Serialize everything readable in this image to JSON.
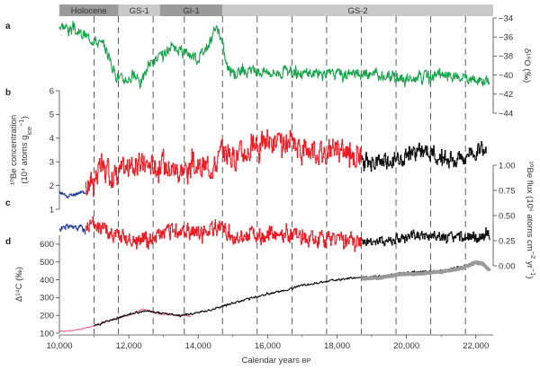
{
  "chart_data": {
    "type": "line",
    "x_axis": {
      "label": "Calendar years",
      "label_suffix": "BP",
      "range": [
        10000,
        22500
      ],
      "ticks": [
        10000,
        12000,
        14000,
        16000,
        18000,
        20000,
        22000
      ],
      "tick_labels": [
        "10,000",
        "12,000",
        "14,000",
        "16,000",
        "18,000",
        "20,000",
        "22,000"
      ]
    },
    "dashed_lines_x": [
      11000,
      11700,
      12700,
      13600,
      14700,
      15700,
      16700,
      17700,
      18700,
      19700,
      20700,
      21700
    ],
    "stages": [
      {
        "label": "Holocene",
        "from": 10000,
        "to": 11700,
        "shade": "#9a9a9a"
      },
      {
        "label": "GS-1",
        "from": 11700,
        "to": 12900,
        "shade": "#c9c9c9"
      },
      {
        "label": "GI-1",
        "from": 12900,
        "to": 14700,
        "shade": "#9a9a9a"
      },
      {
        "label": "GS-2",
        "from": 14700,
        "to": 22500,
        "shade": "#c9c9c9"
      }
    ],
    "colors": {
      "green": "#16a34a",
      "red": "#ee1c25",
      "blue": "#1f3f9a",
      "black": "#111111",
      "pink": "#e8638a",
      "grey": "#9a9a9a"
    },
    "panels": [
      {
        "letter": "a",
        "series_name": "δ18O",
        "axis_side": "right",
        "ylabel": "δ¹⁸O (‰)",
        "ylim": [
          -44,
          -34
        ],
        "inverted": false,
        "ticks": [
          -34,
          -36,
          -38,
          -40,
          -42,
          -44
        ],
        "tick_labels": [
          "−34",
          "−36",
          "−38",
          "−40",
          "−42",
          "−44"
        ],
        "segments": [
          {
            "color": "green",
            "x": [
              10000,
              10500,
              11000,
              11350,
              11600,
              11800,
              12100,
              12400,
              12600,
              12900,
              13200,
              13600,
              14000,
              14350,
              14500,
              14650,
              14850,
              15200,
              16000,
              17000,
              18000,
              19000,
              20000,
              21000,
              22000,
              22400
            ],
            "y": [
              -34.6,
              -35.5,
              -36.2,
              -37.3,
              -39.8,
              -40.5,
              -40.2,
              -40.5,
              -38.7,
              -38.2,
              -37.4,
              -37.4,
              -38.2,
              -36.5,
              -35.0,
              -36.0,
              -39.3,
              -39.6,
              -39.6,
              -39.8,
              -39.9,
              -39.9,
              -40.4,
              -40.1,
              -40.6,
              -40.6
            ],
            "amp": 0.9,
            "seed": 3
          }
        ]
      },
      {
        "letter": "b",
        "series_name": "10Be concentration",
        "axis_side": "left",
        "ylabel": "¹⁰Be concentration",
        "ylabel2": "(10⁴ atoms g",
        "ylabel2_sub": "ice",
        "ylabel2_sup": "−1",
        "ylabel2_end": ")",
        "ylim": [
          1,
          6
        ],
        "ticks": [
          1,
          2,
          3,
          4,
          5,
          6
        ],
        "tick_labels": [
          "1",
          "2",
          "3",
          "4",
          "5",
          "6"
        ],
        "segments": [
          {
            "color": "blue",
            "x": [
              10000,
              10200,
              10400,
              10600,
              10750
            ],
            "y": [
              1.7,
              1.55,
              1.6,
              1.75,
              1.7
            ],
            "amp": 0.12,
            "seed": 11
          },
          {
            "color": "red",
            "x": [
              10750,
              11000,
              11200,
              11500,
              12000,
              12500,
              13000,
              13500,
              14000,
              14500,
              14700,
              15000,
              15500,
              16000,
              16500,
              17000,
              17500,
              18000,
              18500,
              18700
            ],
            "y": [
              1.8,
              2.4,
              2.7,
              2.4,
              2.8,
              2.9,
              2.8,
              2.7,
              2.7,
              2.9,
              3.5,
              3.2,
              3.5,
              3.9,
              3.6,
              3.6,
              3.5,
              3.5,
              3.3,
              3.2
            ],
            "amp": 0.75,
            "seed": 17
          },
          {
            "color": "black",
            "x": [
              18700,
              19000,
              19500,
              20000,
              20500,
              21000,
              21500,
              22000,
              22300
            ],
            "y": [
              3.0,
              2.9,
              3.0,
              3.3,
              3.5,
              3.2,
              3.1,
              3.5,
              3.6
            ],
            "amp": 0.55,
            "seed": 23
          }
        ]
      },
      {
        "letter": "c",
        "series_name": "10Be flux",
        "axis_side": "right",
        "ylabel": "¹⁰Be flux (10⁶ atoms cm",
        "ylabel_sup1": "−2",
        "ylabel_mid": " yr",
        "ylabel_sup2": "−1",
        "ylabel_end": ")",
        "ylim": [
          0,
          1.0
        ],
        "ticks": [
          0,
          0.25,
          0.5,
          0.75,
          1.0
        ],
        "tick_labels": [
          "0.00",
          "0.25",
          "0.50",
          "0.75",
          "1.00"
        ],
        "segments": [
          {
            "color": "blue",
            "x": [
              10000,
              10200,
              10400,
              10600,
              10750
            ],
            "y": [
              0.36,
              0.4,
              0.37,
              0.38,
              0.35
            ],
            "amp": 0.04,
            "seed": 31
          },
          {
            "color": "red",
            "x": [
              10750,
              11000,
              11200,
              11600,
              12000,
              12500,
              13000,
              13500,
              14000,
              14500,
              14700,
              15000,
              15500,
              16000,
              16500,
              17000,
              17500,
              18000,
              18700
            ],
            "y": [
              0.35,
              0.42,
              0.38,
              0.31,
              0.27,
              0.28,
              0.33,
              0.33,
              0.34,
              0.38,
              0.37,
              0.3,
              0.3,
              0.29,
              0.29,
              0.27,
              0.27,
              0.27,
              0.24
            ],
            "amp": 0.12,
            "seed": 37
          },
          {
            "color": "black",
            "x": [
              18700,
              19000,
              19500,
              20000,
              20500,
              21000,
              21500,
              22000,
              22400
            ],
            "y": [
              0.23,
              0.24,
              0.25,
              0.27,
              0.3,
              0.29,
              0.27,
              0.28,
              0.32
            ],
            "amp": 0.08,
            "seed": 41
          }
        ]
      },
      {
        "letter": "d",
        "series_name": "Δ14C",
        "axis_side": "left",
        "ylabel": "Δ¹⁴C (‰)",
        "ylim": [
          100,
          650
        ],
        "ticks": [
          100,
          200,
          300,
          400,
          500,
          600
        ],
        "tick_labels": [
          "100",
          "200",
          "300",
          "400",
          "500",
          "600"
        ],
        "segments": [
          {
            "color": "pink",
            "x": [
              10000,
              10200,
              10500,
              10800,
              11000,
              11300,
              11600,
              12000,
              12400,
              12600,
              12800,
              13000,
              13500,
              13800
            ],
            "y": [
              110,
              112,
              118,
              130,
              140,
              160,
              180,
              200,
              235,
              228,
              210,
              205,
              200,
              195
            ],
            "amp": 4,
            "seed": 51
          },
          {
            "color": "black",
            "x": [
              11000,
              11500,
              12000,
              12500,
              13000,
              13500,
              14000,
              14500,
              15000,
              15500,
              16000,
              16500,
              17000,
              17500,
              18000,
              18500,
              19000,
              19500,
              20000,
              20500,
              21000,
              21500,
              22000,
              22300
            ],
            "y": [
              140,
              175,
              205,
              225,
              210,
              200,
              215,
              240,
              270,
              295,
              320,
              340,
              370,
              385,
              400,
              410,
              415,
              425,
              440,
              445,
              450,
              470,
              490,
              480
            ],
            "amp": 9,
            "seed": 57
          },
          {
            "color": "grey",
            "x": [
              18700,
              19200,
              19800,
              20400,
              21000,
              21600,
              22000,
              22200,
              22400
            ],
            "y": [
              405,
              410,
              430,
              435,
              445,
              465,
              500,
              490,
              450
            ],
            "amp": 4,
            "seed": 61
          }
        ]
      }
    ]
  }
}
